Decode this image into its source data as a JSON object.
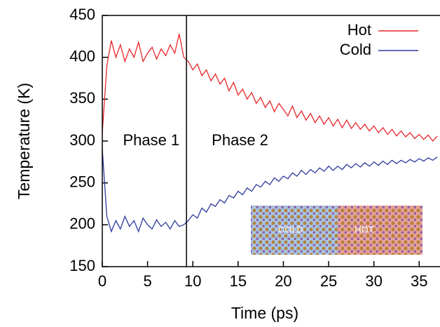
{
  "chart_data": {
    "type": "line",
    "xlabel": "Time (ps)",
    "ylabel": "Temperature (K)",
    "x": [
      0,
      0.5,
      1,
      1.5,
      2,
      2.5,
      3,
      3.5,
      4,
      4.5,
      5,
      5.5,
      6,
      6.5,
      7,
      7.5,
      8,
      8.5,
      9,
      9.5,
      10,
      10.5,
      11,
      11.5,
      12,
      12.5,
      13,
      13.5,
      14,
      14.5,
      15,
      15.5,
      16,
      16.5,
      17,
      17.5,
      18,
      18.5,
      19,
      19.5,
      20,
      20.5,
      21,
      21.5,
      22,
      22.5,
      23,
      23.5,
      24,
      24.5,
      25,
      25.5,
      26,
      26.5,
      27,
      27.5,
      28,
      28.5,
      29,
      29.5,
      30,
      30.5,
      31,
      31.5,
      32,
      32.5,
      33,
      33.5,
      34,
      34.5,
      35,
      35.5,
      36,
      36.5,
      37
    ],
    "series": [
      {
        "name": "Hot",
        "color": "#e8262a",
        "values": [
          310,
          390,
          420,
          400,
          415,
          395,
          410,
          400,
          418,
          395,
          405,
          412,
          398,
          410,
          402,
          415,
          405,
          428,
          400,
          395,
          385,
          392,
          378,
          385,
          372,
          380,
          368,
          375,
          360,
          370,
          355,
          362,
          350,
          358,
          345,
          352,
          340,
          348,
          335,
          345,
          338,
          330,
          342,
          328,
          336,
          325,
          333,
          322,
          330,
          320,
          328,
          318,
          326,
          316,
          325,
          315,
          322,
          314,
          320,
          312,
          318,
          310,
          316,
          308,
          314,
          306,
          312,
          305,
          310,
          303,
          308,
          302,
          307,
          300,
          306
        ]
      },
      {
        "name": "Cold",
        "color": "#2b3a9c",
        "values": [
          290,
          210,
          192,
          205,
          195,
          210,
          198,
          205,
          192,
          208,
          200,
          195,
          206,
          198,
          203,
          195,
          205,
          198,
          200,
          205,
          212,
          208,
          220,
          215,
          225,
          222,
          230,
          226,
          235,
          232,
          240,
          236,
          244,
          240,
          248,
          245,
          252,
          248,
          256,
          252,
          258,
          255,
          262,
          258,
          265,
          260,
          266,
          262,
          268,
          264,
          270,
          265,
          270,
          266,
          272,
          268,
          273,
          269,
          274,
          270,
          275,
          271,
          276,
          272,
          277,
          273,
          277,
          274,
          278,
          275,
          279,
          276,
          280,
          277,
          281
        ]
      }
    ],
    "xlim": [
      0,
      37.3
    ],
    "xticks": [
      0,
      5,
      10,
      15,
      20,
      25,
      30,
      35
    ],
    "ylim": [
      150,
      450
    ],
    "yticks": [
      150,
      200,
      250,
      300,
      350,
      400,
      450
    ],
    "phase_boundary": 9.3,
    "annotations": [
      "Phase 1",
      "Phase 2"
    ],
    "inset_labels": [
      "COLD",
      "HOT"
    ],
    "legend": "upper right"
  }
}
